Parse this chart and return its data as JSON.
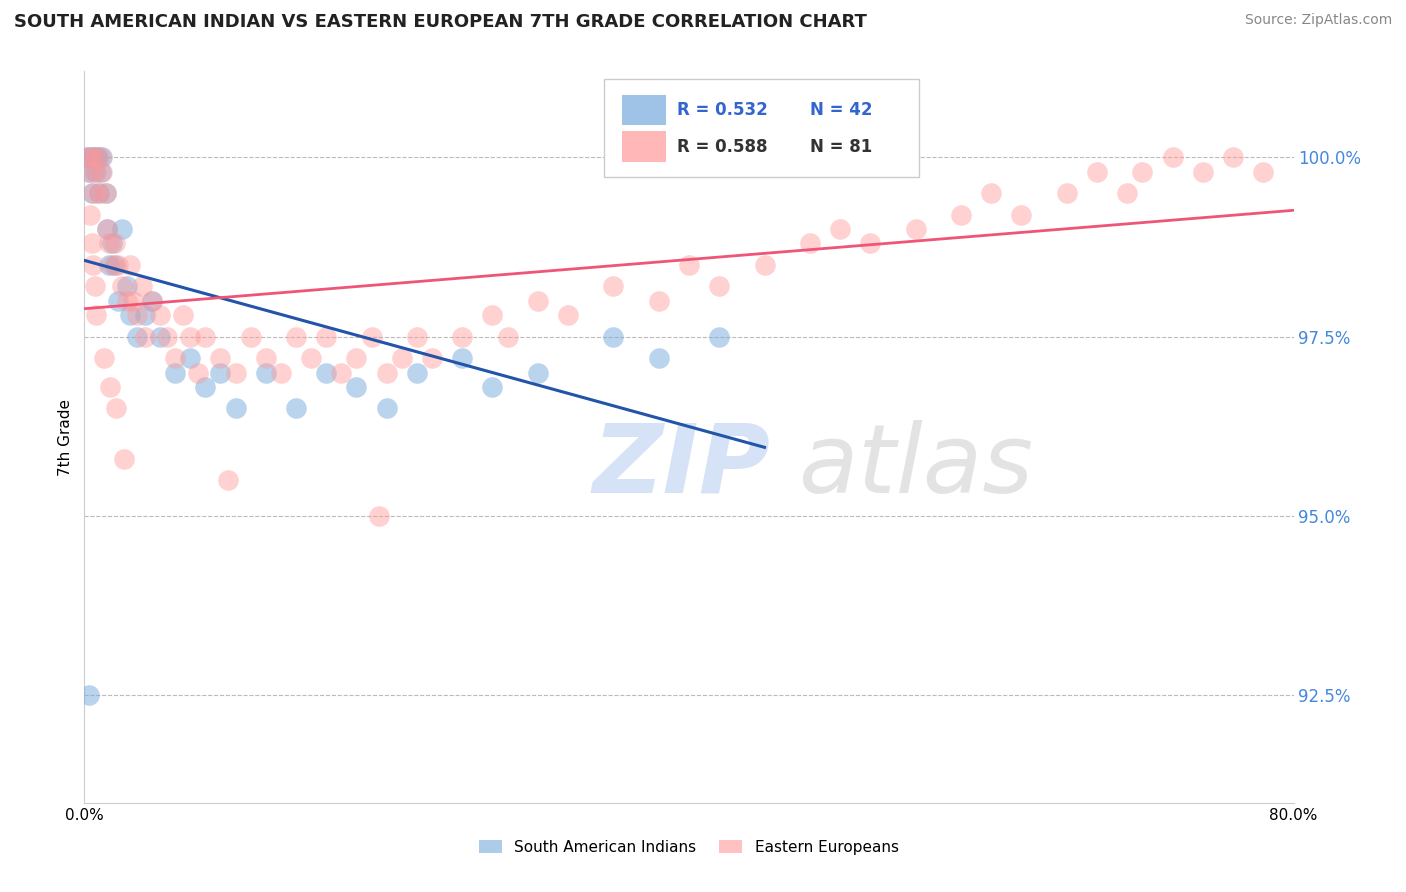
{
  "title": "SOUTH AMERICAN INDIAN VS EASTERN EUROPEAN 7TH GRADE CORRELATION CHART",
  "source": "Source: ZipAtlas.com",
  "ylabel": "7th Grade",
  "ytick_values": [
    92.5,
    95.0,
    97.5,
    100.0
  ],
  "ytick_labels": [
    "92.5%",
    "95.0%",
    "97.5%",
    "100.0%"
  ],
  "xlim": [
    0.0,
    80.0
  ],
  "ylim": [
    91.0,
    101.2
  ],
  "blue_color": "#77AADD",
  "pink_color": "#FF9999",
  "blue_line_color": "#2255AA",
  "pink_line_color": "#EE5577",
  "blue_scatter_x": [
    0.2,
    0.3,
    0.4,
    0.5,
    0.6,
    0.7,
    0.8,
    0.9,
    1.0,
    1.1,
    1.2,
    1.4,
    1.5,
    1.6,
    1.8,
    2.0,
    2.2,
    2.5,
    2.8,
    3.0,
    3.5,
    4.0,
    4.5,
    5.0,
    6.0,
    7.0,
    8.0,
    9.0,
    10.0,
    12.0,
    14.0,
    16.0,
    18.0,
    20.0,
    22.0,
    25.0,
    27.0,
    30.0,
    35.0,
    38.0,
    42.0,
    0.3
  ],
  "blue_scatter_y": [
    100.0,
    99.8,
    100.0,
    99.5,
    100.0,
    99.8,
    100.0,
    100.0,
    99.5,
    99.8,
    100.0,
    99.5,
    99.0,
    98.5,
    98.8,
    98.5,
    98.0,
    99.0,
    98.2,
    97.8,
    97.5,
    97.8,
    98.0,
    97.5,
    97.0,
    97.2,
    96.8,
    97.0,
    96.5,
    97.0,
    96.5,
    97.0,
    96.8,
    96.5,
    97.0,
    97.2,
    96.8,
    97.0,
    97.5,
    97.2,
    97.5,
    92.5
  ],
  "pink_scatter_x": [
    0.2,
    0.3,
    0.5,
    0.6,
    0.7,
    0.8,
    1.0,
    1.1,
    1.2,
    1.4,
    1.5,
    1.6,
    1.8,
    2.0,
    2.2,
    2.5,
    2.8,
    3.0,
    3.2,
    3.5,
    3.8,
    4.0,
    4.5,
    5.0,
    5.5,
    6.0,
    6.5,
    7.0,
    7.5,
    8.0,
    9.0,
    10.0,
    11.0,
    12.0,
    13.0,
    14.0,
    15.0,
    16.0,
    17.0,
    18.0,
    19.0,
    20.0,
    21.0,
    22.0,
    23.0,
    25.0,
    27.0,
    28.0,
    30.0,
    32.0,
    35.0,
    38.0,
    40.0,
    42.0,
    45.0,
    48.0,
    50.0,
    52.0,
    55.0,
    58.0,
    60.0,
    62.0,
    65.0,
    67.0,
    69.0,
    70.0,
    72.0,
    74.0,
    76.0,
    78.0,
    0.4,
    0.5,
    0.6,
    0.7,
    0.8,
    1.3,
    1.7,
    2.1,
    2.6,
    9.5,
    19.5
  ],
  "pink_scatter_y": [
    100.0,
    99.8,
    100.0,
    99.5,
    100.0,
    99.8,
    99.5,
    100.0,
    99.8,
    99.5,
    99.0,
    98.8,
    98.5,
    98.8,
    98.5,
    98.2,
    98.0,
    98.5,
    98.0,
    97.8,
    98.2,
    97.5,
    98.0,
    97.8,
    97.5,
    97.2,
    97.8,
    97.5,
    97.0,
    97.5,
    97.2,
    97.0,
    97.5,
    97.2,
    97.0,
    97.5,
    97.2,
    97.5,
    97.0,
    97.2,
    97.5,
    97.0,
    97.2,
    97.5,
    97.2,
    97.5,
    97.8,
    97.5,
    98.0,
    97.8,
    98.2,
    98.0,
    98.5,
    98.2,
    98.5,
    98.8,
    99.0,
    98.8,
    99.0,
    99.2,
    99.5,
    99.2,
    99.5,
    99.8,
    99.5,
    99.8,
    100.0,
    99.8,
    100.0,
    99.8,
    99.2,
    98.8,
    98.5,
    98.2,
    97.8,
    97.2,
    96.8,
    96.5,
    95.8,
    95.5,
    95.0
  ],
  "watermark_zip": "ZIP",
  "watermark_atlas": "atlas"
}
